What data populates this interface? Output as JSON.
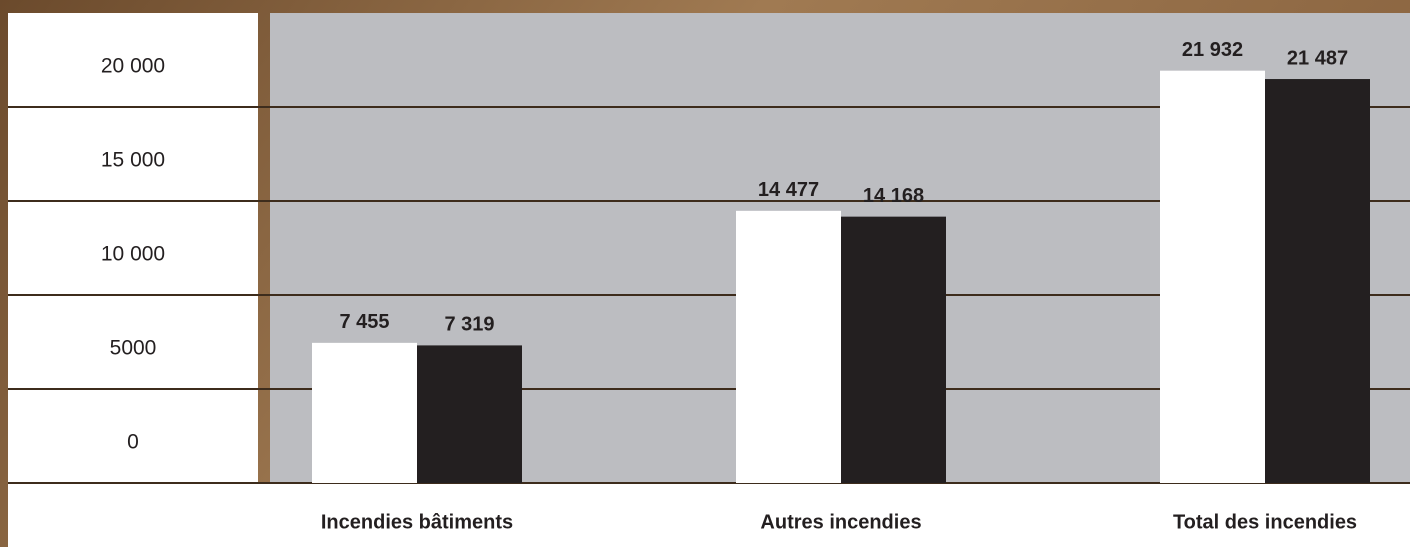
{
  "chart_data": {
    "type": "bar",
    "categories": [
      "Incendies bâtiments",
      "Autres incendies",
      "Total des incendies"
    ],
    "series": [
      {
        "color": "#ffffff",
        "values": [
          7455,
          14477,
          21932
        ],
        "value_labels": [
          "7 455",
          "14 477",
          "21 932"
        ]
      },
      {
        "color": "#231f20",
        "values": [
          7319,
          14168,
          21487
        ],
        "value_labels": [
          "7 319",
          "14 168",
          "21 487"
        ]
      }
    ],
    "ylim": [
      0,
      25000
    ],
    "yticks": [
      0,
      5000,
      {
        "value": 10000,
        "label": "10 000"
      },
      {
        "value": 15000,
        "label": "15 000"
      },
      {
        "value": 20000,
        "label": "20 000"
      }
    ],
    "grid": true
  }
}
